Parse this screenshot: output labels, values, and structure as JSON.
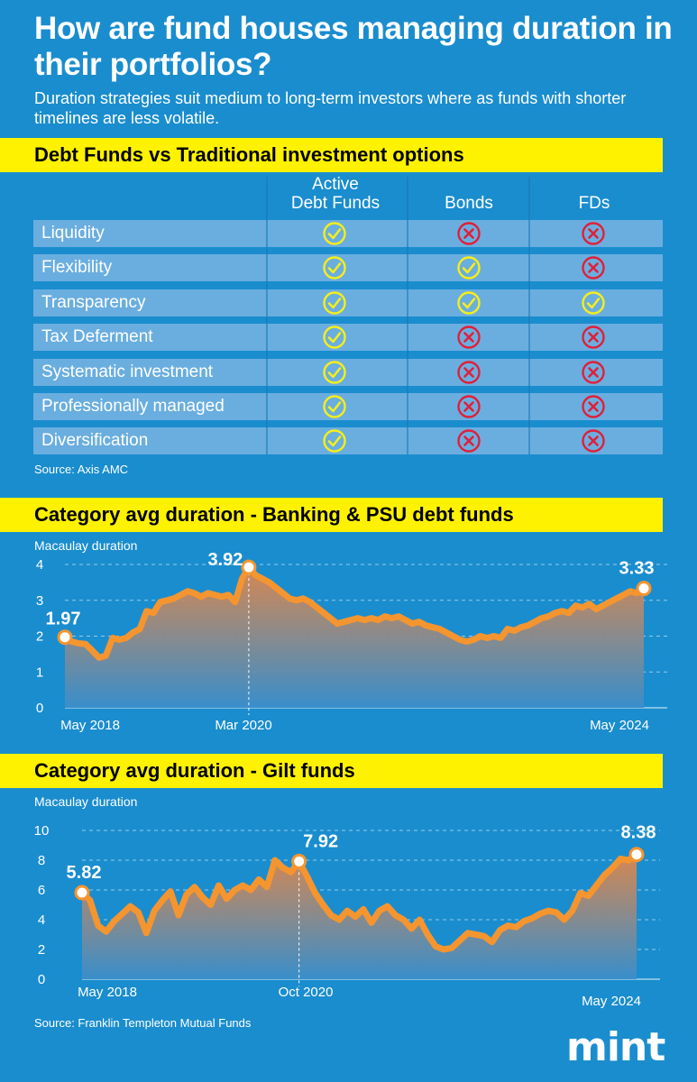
{
  "title": "How are fund houses managing duration in their portfolios?",
  "subtitle": "Duration strategies suit medium to long-term investors where as funds with shorter timelines are less volatile.",
  "comparison": {
    "heading": "Debt Funds vs Traditional investment options",
    "columns": [
      "Active\nDebt Funds",
      "Bonds",
      "FDs"
    ],
    "rows": [
      {
        "label": "Liquidity",
        "values": [
          "yes",
          "no",
          "no"
        ]
      },
      {
        "label": "Flexibility",
        "values": [
          "yes",
          "yes",
          "no"
        ]
      },
      {
        "label": "Transparency",
        "values": [
          "yes",
          "yes",
          "yes"
        ]
      },
      {
        "label": "Tax Deferment",
        "values": [
          "yes",
          "no",
          "no"
        ]
      },
      {
        "label": "Systematic investment",
        "values": [
          "yes",
          "no",
          "no"
        ]
      },
      {
        "label": "Professionally managed",
        "values": [
          "yes",
          "no",
          "no"
        ]
      },
      {
        "label": "Diversification",
        "values": [
          "yes",
          "no",
          "no"
        ]
      }
    ],
    "source": "Source: Axis AMC",
    "icons": {
      "yes": "check-circle-icon",
      "no": "cross-circle-icon"
    },
    "colors": {
      "yes": "#f5ee1a",
      "no": "#e0203a"
    }
  },
  "chart_data": [
    {
      "type": "area",
      "title": "Category avg duration - Banking & PSU debt funds",
      "ylabel": "Macaulay duration",
      "ylim": [
        0,
        4
      ],
      "yticks": [
        0,
        1,
        2,
        3,
        4
      ],
      "xticks": [
        "May 2018",
        "Mar 2020",
        "May 2024"
      ],
      "x_start": "May 2018",
      "x_end": "May 2024",
      "values": [
        1.97,
        1.85,
        1.8,
        1.78,
        1.6,
        1.4,
        1.45,
        1.95,
        1.9,
        1.95,
        2.1,
        2.2,
        2.7,
        2.65,
        2.95,
        3.0,
        3.05,
        3.15,
        3.25,
        3.2,
        3.1,
        3.2,
        3.15,
        3.1,
        3.15,
        2.95,
        3.6,
        3.92,
        3.7,
        3.6,
        3.5,
        3.35,
        3.2,
        3.05,
        3.0,
        3.05,
        2.95,
        2.8,
        2.65,
        2.5,
        2.35,
        2.4,
        2.45,
        2.5,
        2.45,
        2.5,
        2.45,
        2.55,
        2.5,
        2.55,
        2.45,
        2.35,
        2.4,
        2.3,
        2.25,
        2.2,
        2.1,
        2.0,
        1.9,
        1.85,
        1.9,
        2.0,
        1.95,
        2.0,
        1.95,
        2.2,
        2.15,
        2.25,
        2.3,
        2.4,
        2.5,
        2.55,
        2.65,
        2.7,
        2.65,
        2.85,
        2.8,
        2.9,
        2.75,
        2.85,
        2.95,
        3.05,
        3.15,
        3.25,
        3.2,
        3.33
      ],
      "annotations": [
        {
          "label": "1.97",
          "index": 0,
          "value": 1.97
        },
        {
          "label": "3.92",
          "index": 27,
          "value": 3.92,
          "x": "Mar 2020"
        },
        {
          "label": "3.33",
          "index": 85,
          "value": 3.33
        }
      ]
    },
    {
      "type": "area",
      "title": "Category avg duration - Gilt funds",
      "ylabel": "Macaulay duration",
      "ylim": [
        0,
        10
      ],
      "yticks": [
        0,
        2,
        4,
        6,
        8,
        10
      ],
      "xticks": [
        "May 2018",
        "Oct 2020",
        "May 2024"
      ],
      "x_start": "May 2018",
      "x_end": "May 2024",
      "values": [
        5.82,
        5.3,
        3.6,
        3.2,
        3.9,
        4.4,
        4.9,
        4.5,
        3.1,
        4.6,
        5.3,
        5.9,
        4.3,
        5.7,
        6.2,
        5.5,
        5.0,
        6.3,
        5.4,
        6.0,
        6.3,
        6.0,
        6.7,
        6.2,
        8.0,
        7.5,
        7.2,
        7.92,
        6.9,
        5.8,
        5.0,
        4.3,
        4.0,
        4.6,
        4.2,
        4.7,
        3.8,
        4.6,
        4.9,
        4.3,
        4.0,
        3.4,
        4.0,
        3.0,
        2.2,
        2.0,
        2.1,
        2.6,
        3.1,
        3.0,
        2.9,
        2.5,
        3.3,
        3.6,
        3.5,
        3.9,
        4.1,
        4.4,
        4.6,
        4.5,
        4.0,
        4.6,
        5.8,
        5.6,
        6.3,
        7.0,
        7.5,
        8.1,
        8.0,
        8.38
      ],
      "annotations": [
        {
          "label": "5.82",
          "index": 0,
          "value": 5.82
        },
        {
          "label": "7.92",
          "index": 27,
          "value": 7.92,
          "x": "Oct 2020"
        },
        {
          "label": "8.38",
          "index": 69,
          "value": 8.38
        }
      ]
    }
  ],
  "gilt_source": "Source: Franklin Templeton Mutual Funds",
  "brand": "mint"
}
